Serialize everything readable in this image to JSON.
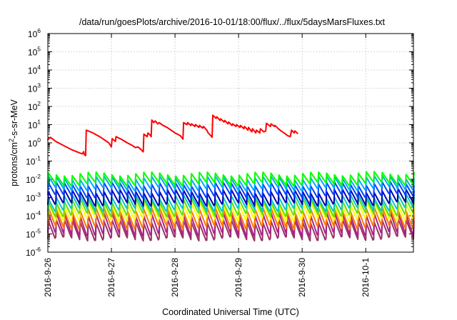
{
  "chart_data": {
    "type": "line",
    "title": "/data/run/goesPlots/archive/2016-10-01/18:00/flux/../flux/5daysMarsFluxes.txt",
    "xlabel": "Coordinated Universal Time (UTC)",
    "ylabel_parts": {
      "pre": "protons/cm",
      "sup": "2",
      "post": "-s-sr-MeV"
    },
    "x_tick_labels": [
      "2016-9-26",
      "2016-9-27",
      "2016-9-28",
      "2016-9-29",
      "2016-9-30",
      "2016-10-1"
    ],
    "y_tick_exponents": [
      -6,
      -5,
      -4,
      -3,
      -2,
      -1,
      0,
      1,
      2,
      3,
      4,
      5,
      6
    ],
    "y_tick_base": "10",
    "yscale": "log",
    "xlim": [
      "2016-09-26T00:00",
      "2016-10-01T18:00"
    ],
    "ylim": [
      1e-06,
      1000000.0
    ],
    "grid": true,
    "legend": "none",
    "sawtooth_period_hours": 3,
    "series": [
      {
        "color": "#ff0000",
        "points": [
          [
            "2016-09-26T00:00",
            1.5
          ],
          [
            "2016-09-26T01:00",
            2.0
          ],
          [
            "2016-09-26T03:00",
            1.2
          ],
          [
            "2016-09-26T06:00",
            0.7
          ],
          [
            "2016-09-26T09:00",
            0.42
          ],
          [
            "2016-09-26T12:00",
            0.28
          ],
          [
            "2016-09-26T13:00",
            0.25
          ],
          [
            "2016-09-26T13:30",
            0.33
          ],
          [
            "2016-09-26T13:45",
            0.23
          ],
          [
            "2016-09-26T14:15",
            0.2
          ],
          [
            "2016-09-26T14:30",
            5.0
          ],
          [
            "2016-09-26T17:00",
            3.5
          ],
          [
            "2016-09-26T20:00",
            2.0
          ],
          [
            "2016-09-26T23:00",
            1.0
          ],
          [
            "2016-09-27T00:00",
            0.6
          ],
          [
            "2016-09-27T00:15",
            1.7
          ],
          [
            "2016-09-27T01:30",
            1.2
          ],
          [
            "2016-09-27T01:45",
            2.2
          ],
          [
            "2016-09-27T04:00",
            1.5
          ],
          [
            "2016-09-27T06:00",
            1.0
          ],
          [
            "2016-09-27T08:00",
            0.7
          ],
          [
            "2016-09-27T09:00",
            0.55
          ],
          [
            "2016-09-27T10:00",
            0.6
          ],
          [
            "2016-09-27T11:00",
            0.45
          ],
          [
            "2016-09-27T12:00",
            0.32
          ],
          [
            "2016-09-27T12:15",
            3.0
          ],
          [
            "2016-09-27T13:30",
            2.2
          ],
          [
            "2016-09-27T13:45",
            3.5
          ],
          [
            "2016-09-27T14:30",
            2.8
          ],
          [
            "2016-09-27T15:00",
            2.2
          ],
          [
            "2016-09-27T15:15",
            18
          ],
          [
            "2016-09-27T16:00",
            13
          ],
          [
            "2016-09-27T16:30",
            16
          ],
          [
            "2016-09-27T17:30",
            11
          ],
          [
            "2016-09-27T18:00",
            13
          ],
          [
            "2016-09-27T19:30",
            9
          ],
          [
            "2016-09-27T21:00",
            7
          ],
          [
            "2016-09-27T22:30",
            5
          ],
          [
            "2016-09-28T00:00",
            3.5
          ],
          [
            "2016-09-28T02:00",
            2.5
          ],
          [
            "2016-09-28T03:00",
            1.6
          ],
          [
            "2016-09-28T03:15",
            13
          ],
          [
            "2016-09-28T04:30",
            10
          ],
          [
            "2016-09-28T04:45",
            13
          ],
          [
            "2016-09-28T06:00",
            9
          ],
          [
            "2016-09-28T06:15",
            11
          ],
          [
            "2016-09-28T07:30",
            8
          ],
          [
            "2016-09-28T07:45",
            10
          ],
          [
            "2016-09-28T09:00",
            7
          ],
          [
            "2016-09-28T09:15",
            9
          ],
          [
            "2016-09-28T10:30",
            6.5
          ],
          [
            "2016-09-28T10:45",
            8
          ],
          [
            "2016-09-28T12:00",
            5
          ],
          [
            "2016-09-28T12:30",
            3.5
          ],
          [
            "2016-09-28T13:30",
            2.5
          ],
          [
            "2016-09-28T14:00",
            2.0
          ],
          [
            "2016-09-28T14:15",
            33
          ],
          [
            "2016-09-28T15:30",
            22
          ],
          [
            "2016-09-28T15:45",
            27
          ],
          [
            "2016-09-28T17:00",
            17
          ],
          [
            "2016-09-28T17:15",
            21
          ],
          [
            "2016-09-28T18:30",
            14
          ],
          [
            "2016-09-28T18:45",
            17
          ],
          [
            "2016-09-28T20:00",
            11
          ],
          [
            "2016-09-28T20:15",
            14
          ],
          [
            "2016-09-28T21:30",
            9
          ],
          [
            "2016-09-28T21:45",
            11
          ],
          [
            "2016-09-28T23:00",
            8
          ],
          [
            "2016-09-28T23:15",
            10
          ],
          [
            "2016-09-29T00:30",
            7
          ],
          [
            "2016-09-29T00:45",
            9
          ],
          [
            "2016-09-29T02:00",
            6
          ],
          [
            "2016-09-29T02:15",
            8
          ],
          [
            "2016-09-29T03:30",
            5
          ],
          [
            "2016-09-29T03:45",
            7
          ],
          [
            "2016-09-29T05:00",
            4
          ],
          [
            "2016-09-29T05:15",
            6
          ],
          [
            "2016-09-29T06:30",
            3.5
          ],
          [
            "2016-09-29T06:45",
            5
          ],
          [
            "2016-09-29T08:00",
            3.5
          ],
          [
            "2016-09-29T08:15",
            6
          ],
          [
            "2016-09-29T09:30",
            4
          ],
          [
            "2016-09-29T10:15",
            4.5
          ],
          [
            "2016-09-29T10:30",
            12
          ],
          [
            "2016-09-29T12:00",
            8
          ],
          [
            "2016-09-29T12:15",
            11
          ],
          [
            "2016-09-29T13:30",
            8
          ],
          [
            "2016-09-29T13:45",
            9
          ],
          [
            "2016-09-29T15:00",
            6
          ],
          [
            "2016-09-29T16:00",
            4.5
          ],
          [
            "2016-09-29T17:30",
            3.2
          ],
          [
            "2016-09-29T18:30",
            2.5
          ],
          [
            "2016-09-29T19:30",
            2.2
          ],
          [
            "2016-09-29T20:00",
            5
          ],
          [
            "2016-09-29T21:00",
            3.5
          ],
          [
            "2016-09-29T21:15",
            4.5
          ],
          [
            "2016-09-29T22:15",
            3.3
          ]
        ]
      },
      {
        "color": "#00ff00",
        "base": 0.02,
        "drop": 3.5
      },
      {
        "color": "#00aaff",
        "base": 0.012,
        "drop": 4.0
      },
      {
        "color": "#0040ff",
        "base": 0.0055,
        "drop": 4.5
      },
      {
        "color": "#0000b0",
        "base": 0.0022,
        "drop": 5.0
      },
      {
        "color": "#00c8c8",
        "base": 0.0011,
        "drop": 5.0
      },
      {
        "color": "#66dd00",
        "base": 0.0007,
        "drop": 6.0
      },
      {
        "color": "#ffff00",
        "base": 0.00045,
        "drop": 7.0
      },
      {
        "color": "#ff7700",
        "base": 0.00022,
        "drop": 9.0
      },
      {
        "color": "#aa2288",
        "base": 0.00012,
        "drop": 12.0
      },
      {
        "color": "#993366",
        "base": 5e-05,
        "drop": 9.0
      }
    ]
  }
}
